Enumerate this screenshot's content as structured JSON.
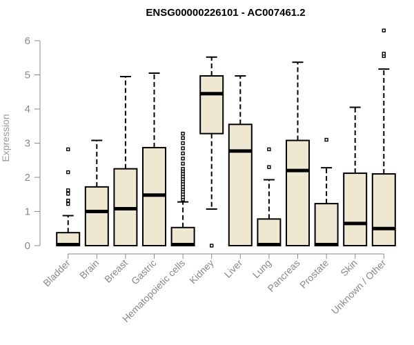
{
  "chart_data": {
    "type": "boxplot",
    "title": "ENSG00000226101 - AC007461.2",
    "xlabel": "",
    "ylabel": "Expression",
    "ylim": [
      0,
      6
    ],
    "yticks": [
      0,
      1,
      2,
      3,
      4,
      5,
      6
    ],
    "grid": false,
    "box_color": "#EEE8D2",
    "categories": [
      "Bladder",
      "Brain",
      "Breast",
      "Gastric",
      "Hematopoietic cells",
      "Kidney",
      "Liver",
      "Lung",
      "Pancreas",
      "Prostate",
      "Skin",
      "Unknown / Other"
    ],
    "boxes": [
      {
        "min": 0,
        "q1": 0,
        "median": 0.03,
        "q3": 0.38,
        "max": 0.88,
        "outliers": [
          1.22,
          1.32,
          1.52,
          1.62,
          2.15,
          2.82
        ]
      },
      {
        "min": 0,
        "q1": 0,
        "median": 1.0,
        "q3": 1.72,
        "max": 3.08,
        "outliers": []
      },
      {
        "min": 0,
        "q1": 0,
        "median": 1.08,
        "q3": 2.25,
        "max": 4.95,
        "outliers": []
      },
      {
        "min": 0,
        "q1": 0,
        "median": 1.48,
        "q3": 2.87,
        "max": 5.05,
        "outliers": []
      },
      {
        "min": 0,
        "q1": 0,
        "median": 0.03,
        "q3": 0.53,
        "max": 1.28,
        "outliers": [
          1.35,
          1.42,
          1.5,
          1.58,
          1.65,
          1.72,
          1.8,
          1.88,
          1.95,
          2.03,
          2.1,
          2.18,
          2.25,
          2.4,
          2.55,
          2.7,
          2.85,
          3.0,
          3.15,
          3.28
        ]
      },
      {
        "min": 1.07,
        "q1": 3.28,
        "median": 4.45,
        "q3": 4.97,
        "max": 5.52,
        "outliers": [
          0.0
        ]
      },
      {
        "min": 0,
        "q1": 0,
        "median": 2.77,
        "q3": 3.55,
        "max": 4.97,
        "outliers": []
      },
      {
        "min": 0,
        "q1": 0,
        "median": 0.03,
        "q3": 0.78,
        "max": 1.93,
        "outliers": [
          2.3,
          2.82
        ]
      },
      {
        "min": 0,
        "q1": 0,
        "median": 2.2,
        "q3": 3.08,
        "max": 5.37,
        "outliers": []
      },
      {
        "min": 0,
        "q1": 0,
        "median": 0.03,
        "q3": 1.23,
        "max": 2.28,
        "outliers": [
          3.1
        ]
      },
      {
        "min": 0,
        "q1": 0,
        "median": 0.65,
        "q3": 2.12,
        "max": 4.05,
        "outliers": []
      },
      {
        "min": 0,
        "q1": 0,
        "median": 0.5,
        "q3": 2.1,
        "max": 5.17,
        "outliers": [
          5.55,
          5.62,
          6.3
        ]
      }
    ]
  }
}
